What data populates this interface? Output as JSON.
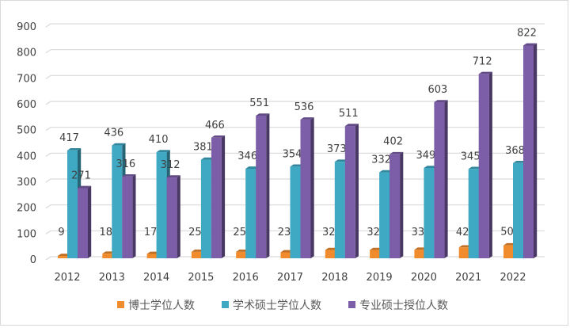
{
  "chart_data": {
    "type": "bar",
    "title": "",
    "xlabel": "",
    "ylabel": "",
    "ylim": [
      0,
      900
    ],
    "yticks": [
      0,
      100,
      200,
      300,
      400,
      500,
      600,
      700,
      800,
      900
    ],
    "grid": true,
    "legend_position": "bottom",
    "categories": [
      "2012",
      "2013",
      "2014",
      "2015",
      "2016",
      "2017",
      "2018",
      "2019",
      "2020",
      "2021",
      "2022"
    ],
    "series": [
      {
        "name": "博士学位人数",
        "color": "#f08c2d",
        "values": [
          9,
          18,
          17,
          25,
          25,
          23,
          32,
          32,
          33,
          42,
          50
        ]
      },
      {
        "name": "学术硕士学位人数",
        "color": "#3fa9c4",
        "values": [
          417,
          436,
          410,
          381,
          346,
          354,
          373,
          332,
          349,
          345,
          368
        ]
      },
      {
        "name": "专业硕士授位人数",
        "color": "#7b5ea7",
        "values": [
          271,
          316,
          312,
          466,
          551,
          536,
          511,
          402,
          603,
          712,
          822
        ]
      }
    ]
  }
}
